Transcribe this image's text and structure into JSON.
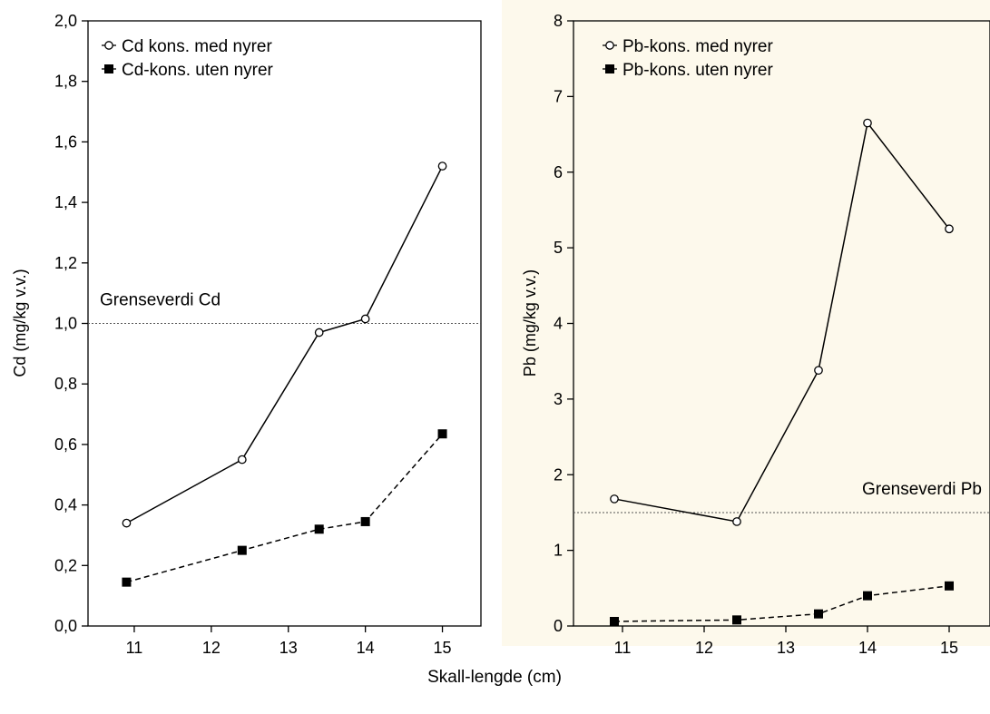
{
  "xlabel": "Skall-lengde (cm)",
  "colors": {
    "panel_right_bg": "#fdf9ec",
    "line": "#000000",
    "threshold": "#555555"
  },
  "chart_data": [
    {
      "type": "line",
      "ylabel": "Cd (mg/kg v.v.)",
      "xlim": [
        10.4,
        15.5
      ],
      "ylim": [
        0,
        2.0
      ],
      "xticks": [
        "11",
        "12",
        "13",
        "14",
        "15"
      ],
      "xtick_values": [
        11,
        12,
        13,
        14,
        15
      ],
      "yticks": [
        "0,0",
        "0,2",
        "0,4",
        "0,6",
        "0,8",
        "1,0",
        "1,2",
        "1,4",
        "1,6",
        "1,8",
        "2,0"
      ],
      "ytick_values": [
        0,
        0.2,
        0.4,
        0.6,
        0.8,
        1.0,
        1.2,
        1.4,
        1.6,
        1.8,
        2.0
      ],
      "legend_position": "top-left",
      "threshold": {
        "value": 1.0,
        "label": "Grenseverdi Cd"
      },
      "series": [
        {
          "name": "Cd kons. med nyrer",
          "marker": "open-circle",
          "line": "solid",
          "x": [
            10.9,
            12.4,
            13.4,
            14.0,
            15.0
          ],
          "y": [
            0.34,
            0.55,
            0.97,
            1.015,
            1.52
          ]
        },
        {
          "name": "Cd-kons. uten nyrer",
          "marker": "filled-square",
          "line": "dashed",
          "x": [
            10.9,
            12.4,
            13.4,
            14.0,
            15.0
          ],
          "y": [
            0.145,
            0.25,
            0.32,
            0.345,
            0.635
          ]
        }
      ]
    },
    {
      "type": "line",
      "ylabel": "Pb (mg/kg v.v.)",
      "xlim": [
        10.4,
        15.5
      ],
      "ylim": [
        0,
        8
      ],
      "xticks": [
        "11",
        "12",
        "13",
        "14",
        "15"
      ],
      "xtick_values": [
        11,
        12,
        13,
        14,
        15
      ],
      "yticks": [
        "0",
        "1",
        "2",
        "3",
        "4",
        "5",
        "6",
        "7",
        "8"
      ],
      "ytick_values": [
        0,
        1,
        2,
        3,
        4,
        5,
        6,
        7,
        8
      ],
      "legend_position": "top-left",
      "threshold": {
        "value": 1.5,
        "label": "Grenseverdi Pb"
      },
      "series": [
        {
          "name": "Pb-kons. med nyrer",
          "marker": "open-circle",
          "line": "solid",
          "x": [
            10.9,
            12.4,
            13.4,
            14.0,
            15.0
          ],
          "y": [
            1.68,
            1.38,
            3.38,
            6.65,
            5.25
          ]
        },
        {
          "name": "Pb-kons. uten nyrer",
          "marker": "filled-square",
          "line": "dashed",
          "x": [
            10.9,
            12.4,
            13.4,
            14.0,
            15.0
          ],
          "y": [
            0.06,
            0.08,
            0.16,
            0.4,
            0.53
          ]
        }
      ]
    }
  ]
}
